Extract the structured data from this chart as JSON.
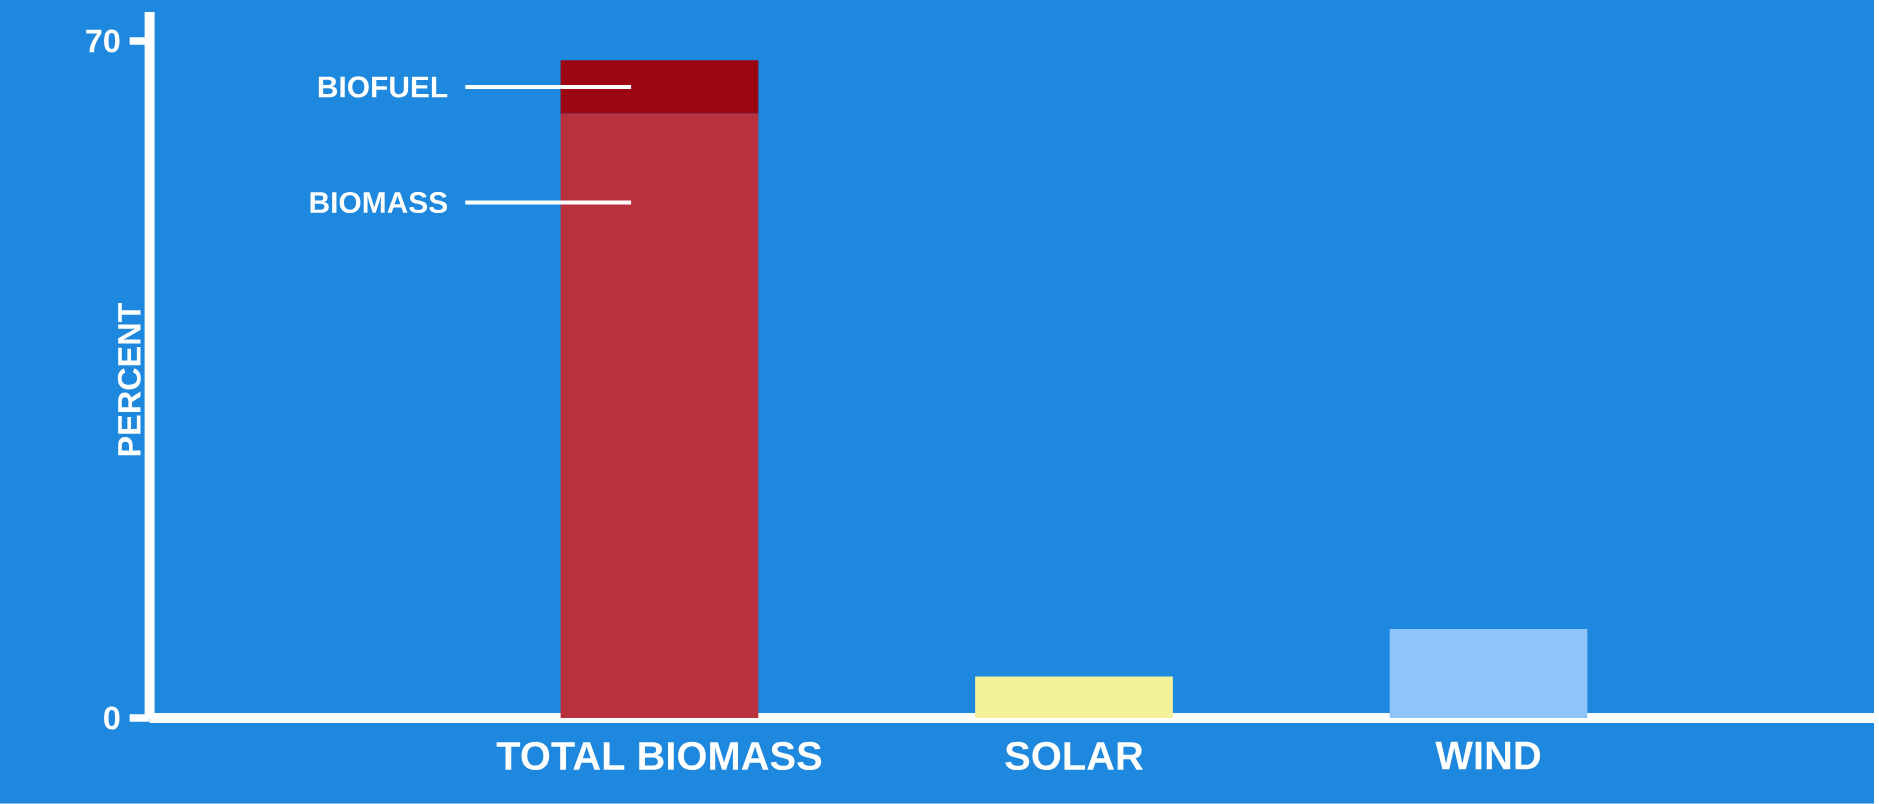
{
  "chart_data": {
    "type": "bar",
    "stacked": true,
    "ylabel": "PERCENT",
    "categories": [
      "TOTAL BIOMASS",
      "SOLAR",
      "WIND"
    ],
    "ylim": [
      0,
      73
    ],
    "yticks": [
      0,
      70
    ],
    "series": [
      {
        "name": "BIOMASS",
        "colors": [
          "#b9313d",
          "#f3f199",
          "#8fc4fa"
        ],
        "values": [
          62.5,
          4.3,
          9.2
        ]
      },
      {
        "name": "BIOFUEL",
        "color": "#9b0512",
        "values": [
          5.5,
          null,
          null
        ]
      }
    ]
  }
}
